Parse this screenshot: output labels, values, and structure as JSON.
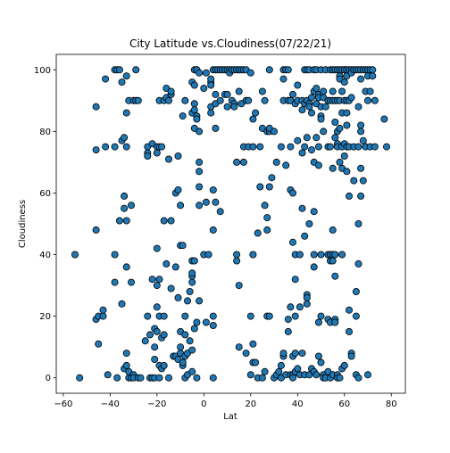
{
  "chart_data": {
    "type": "scatter",
    "title": "City Latitude vs.Cloudiness(07/22/21)",
    "xlabel": "Lat",
    "ylabel": "Cloudiness",
    "xlim": [
      -63,
      86
    ],
    "ylim": [
      -5,
      105
    ],
    "xticks": [
      -60,
      -40,
      -20,
      0,
      20,
      40,
      60,
      80
    ],
    "yticks": [
      0,
      20,
      40,
      60,
      80,
      100
    ],
    "grid": false,
    "legend": "none",
    "marker_color": "#1f77b4",
    "marker_edge": "#000000",
    "points": [
      [
        -55,
        40
      ],
      [
        -53,
        0
      ],
      [
        -46,
        74
      ],
      [
        -46,
        88
      ],
      [
        -46,
        48
      ],
      [
        -46,
        19
      ],
      [
        -45,
        11
      ],
      [
        -45,
        20
      ],
      [
        -43,
        20
      ],
      [
        -43,
        22
      ],
      [
        -42,
        97
      ],
      [
        -42,
        75
      ],
      [
        -41,
        1
      ],
      [
        -38,
        100
      ],
      [
        -38,
        75
      ],
      [
        -38,
        40
      ],
      [
        -38,
        31
      ],
      [
        -37,
        0
      ],
      [
        -37,
        100
      ],
      [
        -36,
        100
      ],
      [
        -36,
        51
      ],
      [
        -35,
        96
      ],
      [
        -35,
        24
      ],
      [
        -35,
        77
      ],
      [
        -34,
        78
      ],
      [
        -34,
        59
      ],
      [
        -34,
        3
      ],
      [
        -34,
        55
      ],
      [
        -33,
        98
      ],
      [
        -33,
        86
      ],
      [
        -33,
        75
      ],
      [
        -33,
        51
      ],
      [
        -33,
        36
      ],
      [
        -33,
        4
      ],
      [
        -33,
        8
      ],
      [
        -32,
        2
      ],
      [
        -32,
        0
      ],
      [
        -32,
        90
      ],
      [
        -31,
        56
      ],
      [
        -31,
        31
      ],
      [
        -31,
        0
      ],
      [
        -30,
        1
      ],
      [
        -30,
        0
      ],
      [
        -30,
        90
      ],
      [
        -29,
        90
      ],
      [
        -29,
        100
      ],
      [
        -28,
        90
      ],
      [
        -28,
        0
      ],
      [
        -27,
        0
      ],
      [
        -25,
        12
      ],
      [
        -24,
        75
      ],
      [
        -24,
        73
      ],
      [
        -24,
        72
      ],
      [
        -24,
        20
      ],
      [
        -23,
        0
      ],
      [
        -23,
        14
      ],
      [
        -22,
        76
      ],
      [
        -22,
        32
      ],
      [
        -22,
        0
      ],
      [
        -21,
        0
      ],
      [
        -21,
        10
      ],
      [
        -21,
        6
      ],
      [
        -21,
        16
      ],
      [
        -20,
        75
      ],
      [
        -20,
        73
      ],
      [
        -20,
        42
      ],
      [
        -20,
        30
      ],
      [
        -20,
        23
      ],
      [
        -20,
        15
      ],
      [
        -19,
        20
      ],
      [
        -19,
        0
      ],
      [
        -19,
        4
      ],
      [
        -19,
        75
      ],
      [
        -19,
        90
      ],
      [
        -19,
        32
      ],
      [
        -18,
        75
      ],
      [
        -18,
        3
      ],
      [
        -18,
        13
      ],
      [
        -17,
        90
      ],
      [
        -17,
        20
      ],
      [
        -17,
        51
      ],
      [
        -17,
        14
      ],
      [
        -17,
        4
      ],
      [
        -16,
        94
      ],
      [
        -16,
        91
      ],
      [
        -16,
        37
      ],
      [
        -15,
        90
      ],
      [
        -15,
        71
      ],
      [
        -15,
        0
      ],
      [
        -14,
        92
      ],
      [
        -14,
        29
      ],
      [
        -14,
        51
      ],
      [
        -14,
        93
      ],
      [
        -13,
        7
      ],
      [
        -12,
        60
      ],
      [
        -12,
        7
      ],
      [
        -12,
        36
      ],
      [
        -11,
        61
      ],
      [
        -11,
        26
      ],
      [
        -11,
        72
      ],
      [
        -11,
        6
      ],
      [
        -10,
        56
      ],
      [
        -10,
        8
      ],
      [
        -10,
        43
      ],
      [
        -10,
        10
      ],
      [
        -10,
        15
      ],
      [
        -9,
        4
      ],
      [
        -9,
        5
      ],
      [
        -9,
        85
      ],
      [
        -9,
        43
      ],
      [
        -8,
        20
      ],
      [
        -8,
        14
      ],
      [
        -8,
        90
      ],
      [
        -8,
        7
      ],
      [
        -8,
        0
      ],
      [
        -7,
        1
      ],
      [
        -7,
        25
      ],
      [
        -7,
        8
      ],
      [
        -6,
        28
      ],
      [
        -6,
        12
      ],
      [
        -5,
        96
      ],
      [
        -5,
        31
      ],
      [
        -5,
        38
      ],
      [
        -5,
        33
      ],
      [
        -5,
        34
      ],
      [
        -5,
        2
      ],
      [
        -5,
        9
      ],
      [
        -5,
        86
      ],
      [
        -4,
        87
      ],
      [
        -4,
        81
      ],
      [
        -4,
        89
      ],
      [
        -4,
        100
      ],
      [
        -4,
        95
      ],
      [
        -4,
        38
      ],
      [
        -4,
        16
      ],
      [
        -3,
        100
      ],
      [
        -3,
        85
      ],
      [
        -3,
        84
      ],
      [
        -3,
        100
      ],
      [
        -3,
        18
      ],
      [
        -3,
        0
      ],
      [
        -2,
        80
      ],
      [
        -2,
        70
      ],
      [
        -2,
        99
      ],
      [
        -2,
        67
      ],
      [
        -2,
        56
      ],
      [
        -2,
        62
      ],
      [
        -2,
        25
      ],
      [
        0,
        40
      ],
      [
        0,
        94
      ],
      [
        1,
        57
      ],
      [
        1,
        18
      ],
      [
        1,
        99
      ],
      [
        2,
        40
      ],
      [
        3,
        96
      ],
      [
        3,
        95
      ],
      [
        3,
        88
      ],
      [
        3,
        86
      ],
      [
        3,
        97
      ],
      [
        4,
        100
      ],
      [
        4,
        20
      ],
      [
        4,
        0
      ],
      [
        4,
        17
      ],
      [
        4,
        48
      ],
      [
        4,
        61
      ],
      [
        5,
        100
      ],
      [
        5,
        92
      ],
      [
        5,
        89
      ],
      [
        5,
        81
      ],
      [
        5,
        57
      ],
      [
        6,
        100
      ],
      [
        7,
        100
      ],
      [
        7,
        54
      ],
      [
        7,
        90
      ],
      [
        8,
        100
      ],
      [
        9,
        100
      ],
      [
        9,
        92
      ],
      [
        10,
        100
      ],
      [
        10,
        92
      ],
      [
        10,
        88
      ],
      [
        11,
        100
      ],
      [
        11,
        99
      ],
      [
        12,
        100
      ],
      [
        12,
        90
      ],
      [
        13,
        100
      ],
      [
        13,
        89
      ],
      [
        13,
        88
      ],
      [
        14,
        100
      ],
      [
        14,
        40
      ],
      [
        14,
        38
      ],
      [
        14,
        70
      ],
      [
        15,
        100
      ],
      [
        15,
        93
      ],
      [
        15,
        10
      ],
      [
        15,
        30
      ],
      [
        16,
        100
      ],
      [
        16,
        89
      ],
      [
        17,
        100
      ],
      [
        17,
        75
      ],
      [
        17,
        70
      ],
      [
        18,
        100
      ],
      [
        18,
        90
      ],
      [
        18,
        8
      ],
      [
        19,
        90
      ],
      [
        19,
        75
      ],
      [
        20,
        20
      ],
      [
        20,
        1
      ],
      [
        20,
        99
      ],
      [
        21,
        84
      ],
      [
        21,
        75
      ],
      [
        21,
        40
      ],
      [
        21,
        11
      ],
      [
        21,
        5
      ],
      [
        22,
        86
      ],
      [
        22,
        5
      ],
      [
        23,
        47
      ],
      [
        23,
        0
      ],
      [
        24,
        75
      ],
      [
        24,
        62
      ],
      [
        25,
        93
      ],
      [
        25,
        81
      ],
      [
        25,
        0
      ],
      [
        26,
        90
      ],
      [
        26,
        56
      ],
      [
        26,
        2
      ],
      [
        27,
        80
      ],
      [
        27,
        52
      ],
      [
        27,
        48
      ],
      [
        27,
        20
      ],
      [
        28,
        80
      ],
      [
        28,
        62
      ],
      [
        28,
        20
      ],
      [
        28,
        81
      ],
      [
        28,
        100
      ],
      [
        29,
        65
      ],
      [
        30,
        80
      ],
      [
        30,
        0
      ],
      [
        31,
        70
      ],
      [
        31,
        1
      ],
      [
        32,
        2
      ],
      [
        33,
        75
      ],
      [
        33,
        4
      ],
      [
        33,
        0
      ],
      [
        34,
        100
      ],
      [
        34,
        97
      ],
      [
        34,
        90
      ],
      [
        34,
        7
      ],
      [
        34,
        8
      ],
      [
        35,
        100
      ],
      [
        35,
        69
      ],
      [
        35,
        1
      ],
      [
        36,
        100
      ],
      [
        36,
        90
      ],
      [
        36,
        19
      ],
      [
        36,
        15
      ],
      [
        37,
        90
      ],
      [
        37,
        90
      ],
      [
        37,
        75
      ],
      [
        37,
        61
      ],
      [
        37,
        23
      ],
      [
        37,
        1
      ],
      [
        38,
        92
      ],
      [
        38,
        60
      ],
      [
        38,
        44
      ],
      [
        38,
        7
      ],
      [
        38,
        1
      ],
      [
        38,
        0
      ],
      [
        39,
        89
      ],
      [
        39,
        40
      ],
      [
        39,
        32
      ],
      [
        39,
        20
      ],
      [
        39,
        8
      ],
      [
        39,
        2
      ],
      [
        40,
        95
      ],
      [
        40,
        90
      ],
      [
        40,
        77
      ],
      [
        40,
        3
      ],
      [
        41,
        1
      ],
      [
        41,
        40
      ],
      [
        41,
        23
      ],
      [
        42,
        90
      ],
      [
        42,
        87
      ],
      [
        42,
        73
      ],
      [
        42,
        55
      ],
      [
        42,
        8
      ],
      [
        43,
        100
      ],
      [
        43,
        89
      ],
      [
        43,
        75
      ],
      [
        43,
        46
      ],
      [
        43,
        1
      ],
      [
        44,
        100
      ],
      [
        44,
        90
      ],
      [
        44,
        78
      ],
      [
        44,
        27
      ],
      [
        44,
        26
      ],
      [
        44,
        24
      ],
      [
        45,
        100
      ],
      [
        45,
        89
      ],
      [
        45,
        88
      ],
      [
        45,
        50
      ],
      [
        45,
        1
      ],
      [
        46,
        91
      ],
      [
        46,
        86
      ],
      [
        46,
        74
      ],
      [
        46,
        3
      ],
      [
        47,
        100
      ],
      [
        47,
        93
      ],
      [
        47,
        70
      ],
      [
        47,
        54
      ],
      [
        47,
        40
      ],
      [
        47,
        36
      ],
      [
        47,
        2
      ],
      [
        48,
        100
      ],
      [
        48,
        94
      ],
      [
        48,
        89
      ],
      [
        48,
        78
      ],
      [
        48,
        1
      ],
      [
        49,
        92
      ],
      [
        49,
        91
      ],
      [
        49,
        75
      ],
      [
        49,
        69
      ],
      [
        49,
        18
      ],
      [
        49,
        7
      ],
      [
        50,
        100
      ],
      [
        50,
        88
      ],
      [
        50,
        85
      ],
      [
        50,
        84
      ],
      [
        50,
        20
      ],
      [
        50,
        5
      ],
      [
        50,
        40
      ],
      [
        51,
        91
      ],
      [
        51,
        93
      ],
      [
        51,
        80
      ],
      [
        51,
        1
      ],
      [
        51,
        0
      ],
      [
        52,
        100
      ],
      [
        52,
        88
      ],
      [
        52,
        0
      ],
      [
        53,
        90
      ],
      [
        53,
        75
      ],
      [
        53,
        40
      ],
      [
        53,
        2
      ],
      [
        53,
        19
      ],
      [
        54,
        100
      ],
      [
        54,
        90
      ],
      [
        54,
        75
      ],
      [
        54,
        40
      ],
      [
        54,
        38
      ],
      [
        54,
        0
      ],
      [
        54,
        18
      ],
      [
        55,
        100
      ],
      [
        55,
        93
      ],
      [
        55,
        90
      ],
      [
        55,
        68
      ],
      [
        55,
        48
      ],
      [
        55,
        40
      ],
      [
        55,
        38
      ],
      [
        55,
        1
      ],
      [
        56,
        100
      ],
      [
        56,
        90
      ],
      [
        56,
        83
      ],
      [
        56,
        78
      ],
      [
        56,
        40
      ],
      [
        56,
        33
      ],
      [
        56,
        19
      ],
      [
        56,
        18
      ],
      [
        57,
        100
      ],
      [
        57,
        90
      ],
      [
        57,
        80
      ],
      [
        57,
        76
      ],
      [
        57,
        75
      ],
      [
        57,
        1
      ],
      [
        57,
        0
      ],
      [
        58,
        100
      ],
      [
        58,
        98
      ],
      [
        58,
        97
      ],
      [
        58,
        90
      ],
      [
        58,
        81
      ],
      [
        58,
        70
      ],
      [
        58,
        0
      ],
      [
        59,
        100
      ],
      [
        59,
        93
      ],
      [
        59,
        86
      ],
      [
        59,
        75
      ],
      [
        59,
        68
      ],
      [
        59,
        40
      ],
      [
        59,
        3
      ],
      [
        60,
        100
      ],
      [
        60,
        100
      ],
      [
        60,
        96
      ],
      [
        60,
        90
      ],
      [
        60,
        76
      ],
      [
        60,
        72
      ],
      [
        60,
        4
      ],
      [
        61,
        100
      ],
      [
        61,
        98
      ],
      [
        61,
        90
      ],
      [
        61,
        86
      ],
      [
        61,
        82
      ],
      [
        61,
        75
      ],
      [
        61,
        67
      ],
      [
        62,
        100
      ],
      [
        62,
        90
      ],
      [
        62,
        75
      ],
      [
        62,
        59
      ],
      [
        62,
        22
      ],
      [
        62,
        15
      ],
      [
        63,
        100
      ],
      [
        63,
        99
      ],
      [
        63,
        91
      ],
      [
        63,
        8
      ],
      [
        63,
        7
      ],
      [
        64,
        100
      ],
      [
        64,
        75
      ],
      [
        64,
        64
      ],
      [
        65,
        100
      ],
      [
        65,
        20
      ],
      [
        65,
        28
      ],
      [
        65,
        1
      ],
      [
        66,
        100
      ],
      [
        66,
        88
      ],
      [
        66,
        75
      ],
      [
        66,
        50
      ],
      [
        66,
        0
      ],
      [
        66,
        37
      ],
      [
        67,
        100
      ],
      [
        67,
        97
      ],
      [
        67,
        82
      ],
      [
        67,
        80
      ],
      [
        67,
        68
      ],
      [
        67,
        59
      ],
      [
        68,
        100
      ],
      [
        68,
        77
      ],
      [
        68,
        64
      ],
      [
        69,
        100
      ],
      [
        69,
        93
      ],
      [
        69,
        75
      ],
      [
        70,
        100
      ],
      [
        70,
        98
      ],
      [
        70,
        90
      ],
      [
        70,
        1
      ],
      [
        71,
        100
      ],
      [
        71,
        93
      ],
      [
        71,
        75
      ],
      [
        72,
        100
      ],
      [
        72,
        98
      ],
      [
        73,
        90
      ],
      [
        73,
        75
      ],
      [
        77,
        84
      ],
      [
        78,
        75
      ]
    ]
  }
}
